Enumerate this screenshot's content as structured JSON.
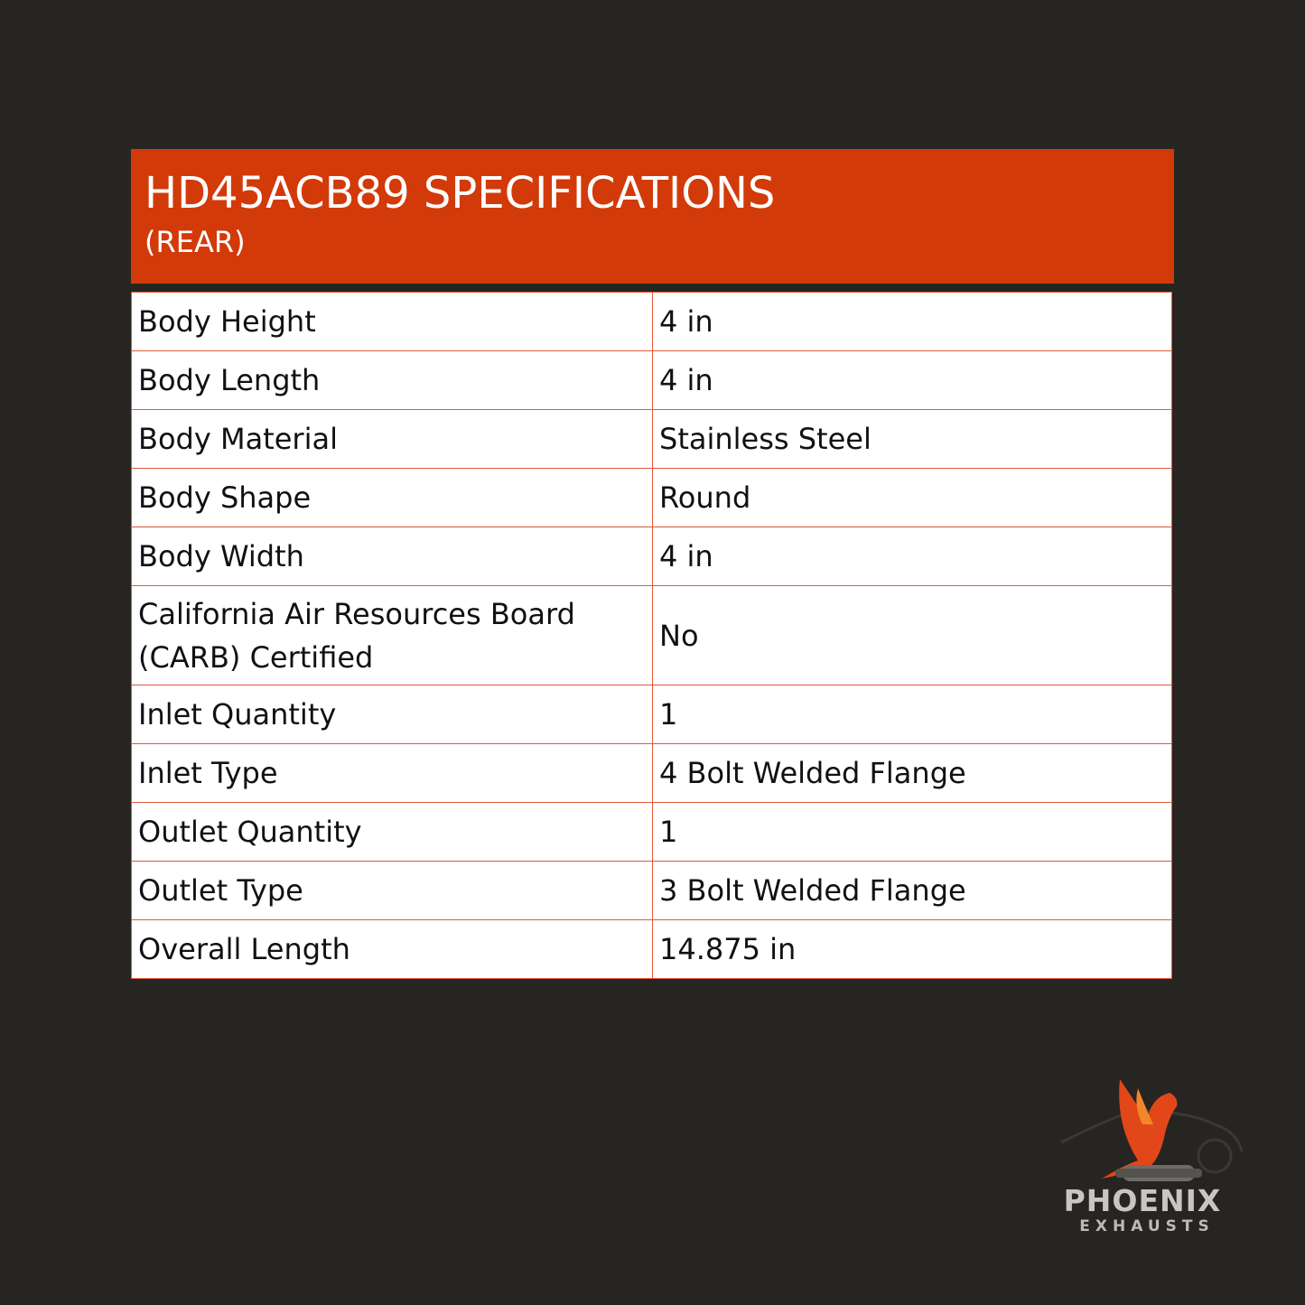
{
  "header": {
    "title": "HD45ACB89 SPECIFICATIONS",
    "subtitle": "(REAR)"
  },
  "specs": [
    {
      "label": "Body Height",
      "value": "4 in"
    },
    {
      "label": "Body Length",
      "value": "4 in"
    },
    {
      "label": "Body Material",
      "value": "Stainless Steel"
    },
    {
      "label": "Body Shape",
      "value": "Round"
    },
    {
      "label": "Body Width",
      "value": "4 in"
    },
    {
      "label": "California Air Resources Board (CARB) Certified",
      "value": "No"
    },
    {
      "label": "Inlet Quantity",
      "value": "1"
    },
    {
      "label": "Inlet Type",
      "value": "4 Bolt Welded Flange"
    },
    {
      "label": "Outlet Quantity",
      "value": "1"
    },
    {
      "label": "Outlet Type",
      "value": "3 Bolt Welded Flange"
    },
    {
      "label": "Overall Length",
      "value": "14.875 in"
    }
  ],
  "logo": {
    "name": "PHOENIX",
    "tagline": "EXHAUSTS"
  },
  "colors": {
    "accent": "#d33a09",
    "background": "#262522",
    "border": "#e0593a"
  }
}
